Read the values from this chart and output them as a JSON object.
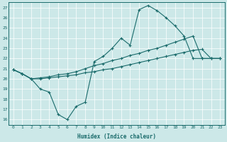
{
  "xlabel": "Humidex (Indice chaleur)",
  "bg_color": "#cce8e8",
  "line_color": "#1a6b6b",
  "grid_color": "#ffffff",
  "xlim": [
    -0.5,
    23.5
  ],
  "ylim": [
    15.5,
    27.5
  ],
  "xticks": [
    0,
    1,
    2,
    3,
    4,
    5,
    6,
    7,
    8,
    9,
    10,
    11,
    12,
    13,
    14,
    15,
    16,
    17,
    18,
    19,
    20,
    21,
    22,
    23
  ],
  "yticks": [
    16,
    17,
    18,
    19,
    20,
    21,
    22,
    23,
    24,
    25,
    26,
    27
  ],
  "line1_x": [
    0,
    1,
    2,
    3,
    4,
    5,
    6,
    7,
    8,
    9,
    10,
    11,
    12,
    13,
    14,
    15,
    16,
    17,
    18,
    19,
    20,
    21,
    22,
    23
  ],
  "line1_y": [
    20.9,
    20.5,
    20.0,
    19.0,
    18.7,
    16.5,
    16.0,
    17.3,
    17.7,
    21.7,
    22.2,
    23.0,
    24.0,
    23.3,
    26.8,
    27.2,
    26.7,
    26.0,
    25.2,
    24.2,
    22.0,
    22.0,
    22.0,
    22.0
  ],
  "line2_x": [
    0,
    1,
    2,
    3,
    4,
    5,
    6,
    7,
    8,
    9,
    10,
    11,
    12,
    13,
    14,
    15,
    16,
    17,
    18,
    19,
    20,
    21,
    22,
    23
  ],
  "line2_y": [
    20.9,
    20.5,
    20.0,
    20.0,
    20.1,
    20.2,
    20.3,
    20.4,
    20.6,
    20.7,
    20.9,
    21.0,
    21.2,
    21.4,
    21.6,
    21.8,
    22.0,
    22.2,
    22.4,
    22.6,
    22.8,
    22.9,
    22.0,
    22.0
  ],
  "line3_x": [
    0,
    1,
    2,
    3,
    4,
    5,
    6,
    7,
    8,
    9,
    10,
    11,
    12,
    13,
    14,
    15,
    16,
    17,
    18,
    19,
    20,
    21,
    22,
    23
  ],
  "line3_y": [
    20.9,
    20.5,
    20.0,
    20.1,
    20.2,
    20.4,
    20.5,
    20.7,
    21.0,
    21.3,
    21.5,
    21.8,
    22.0,
    22.3,
    22.5,
    22.8,
    23.0,
    23.3,
    23.6,
    23.9,
    24.2,
    22.0,
    22.0,
    22.0
  ]
}
